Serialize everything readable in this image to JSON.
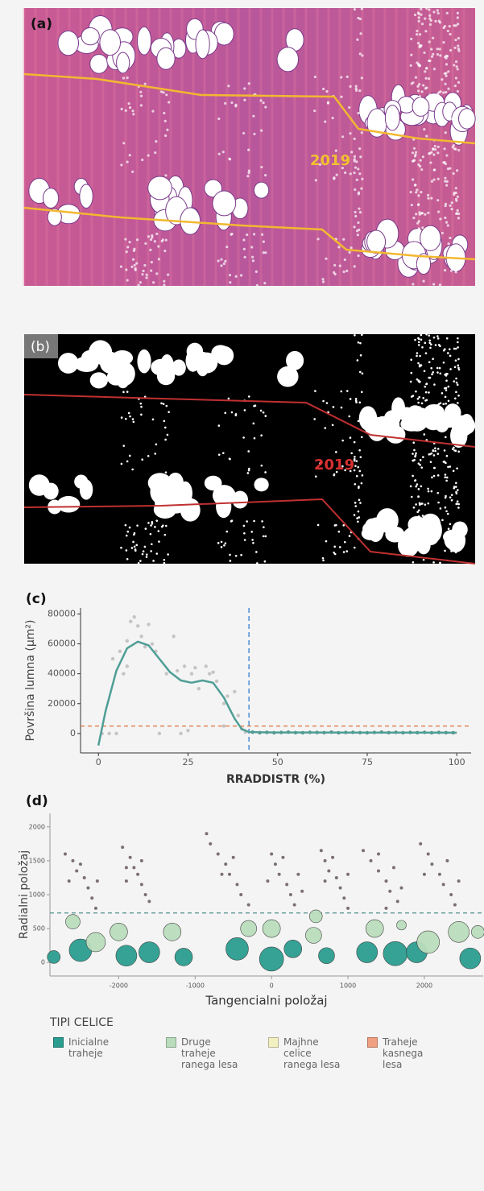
{
  "panels": [
    {
      "label": "(a)",
      "annotation": "2019"
    },
    {
      "label": "(b)",
      "annotation": "2019"
    }
  ],
  "chart_data": [
    {
      "type": "scatter",
      "panel_label": "(c)",
      "x_label": "RRADDISTR (%)",
      "y_label": "Površina lumna (µm²)",
      "xlim": [
        -5,
        104
      ],
      "ylim": [
        -13000,
        84000
      ],
      "xticks": [
        0,
        25,
        50,
        75,
        100
      ],
      "yticks": [
        0,
        20000,
        40000,
        60000,
        80000
      ],
      "vline": 42,
      "vline_color": "#4a8fd8",
      "hline": 5000,
      "hline_color": "#e0703a",
      "series": [
        {
          "mode": "points",
          "color": "#c4c4c4",
          "x": [
            1,
            3,
            5,
            4,
            6,
            7,
            8,
            8,
            9,
            10,
            11,
            12,
            13,
            14,
            15,
            16,
            17,
            19,
            21,
            22,
            23,
            24,
            25,
            26,
            27,
            28,
            30,
            31,
            32,
            33,
            35,
            35,
            36,
            38,
            39,
            40,
            41
          ],
          "values": [
            0,
            0,
            0,
            50000,
            55000,
            40000,
            62000,
            45000,
            75000,
            78000,
            72000,
            65000,
            58000,
            73000,
            60000,
            55000,
            0,
            40000,
            65000,
            42000,
            0,
            45000,
            2000,
            40000,
            44000,
            30000,
            45000,
            40000,
            41000,
            35000,
            20000,
            5000,
            25000,
            28000,
            12000,
            3000,
            1000
          ]
        },
        {
          "mode": "points",
          "color": "#4f8f8a",
          "x": [
            43,
            45,
            47,
            49,
            51,
            53,
            55,
            57,
            59,
            61,
            63,
            65,
            67,
            69,
            71,
            73,
            75,
            77,
            79,
            81,
            83,
            85,
            87,
            89,
            91,
            93,
            95,
            97,
            99
          ],
          "values": [
            900,
            600,
            800,
            500,
            700,
            900,
            600,
            500,
            800,
            700,
            600,
            900,
            500,
            700,
            800,
            600,
            500,
            700,
            900,
            600,
            800,
            500,
            700,
            600,
            800,
            500,
            700,
            600,
            500
          ]
        },
        {
          "mode": "line",
          "color": "#4f9e96",
          "x": [
            0,
            2,
            5,
            8,
            11,
            14,
            17,
            20,
            23,
            26,
            29,
            32,
            35,
            38,
            40,
            42,
            45,
            50,
            60,
            70,
            80,
            90,
            100
          ],
          "values": [
            -8000,
            15000,
            42000,
            57000,
            61500,
            59000,
            50000,
            41000,
            35500,
            34000,
            35500,
            34000,
            24000,
            10000,
            3000,
            1000,
            800,
            700,
            700,
            600,
            600,
            600,
            500
          ]
        }
      ]
    },
    {
      "type": "scatter",
      "panel_label": "(d)",
      "x_label": "Tangencialni položaj",
      "y_label": "Radialni položaj",
      "xlim": [
        -2900,
        2770
      ],
      "ylim": [
        -200,
        2200
      ],
      "xticks": [
        -2000,
        -1000,
        0,
        1000,
        2000
      ],
      "yticks": [
        0,
        500,
        1000,
        1500,
        2000
      ],
      "hline": 730,
      "hline_color": "#4f8f8a",
      "legend_title": "TIPI CELICE",
      "series": [
        {
          "name": "Inicialne traheje",
          "color": "#2a9d8f",
          "mode": "bubbles",
          "x": [
            -2500,
            -1900,
            -1600,
            -1150,
            -450,
            0,
            280,
            720,
            1250,
            1620,
            1900,
            2600,
            -2850
          ],
          "values": [
            180,
            100,
            150,
            80,
            200,
            50,
            200,
            100,
            150,
            130,
            150,
            60,
            80
          ],
          "sizes": [
            14,
            13,
            13,
            11,
            14,
            15,
            11,
            10,
            13,
            15,
            13,
            13,
            8
          ]
        },
        {
          "name": "Druge traheje ranega lesa",
          "color": "#b9dcbc",
          "mode": "bubbles",
          "x": [
            -2600,
            -2300,
            -2000,
            -1300,
            -300,
            0,
            550,
            580,
            1350,
            1700,
            2050,
            2450,
            2700
          ],
          "values": [
            600,
            300,
            450,
            450,
            500,
            500,
            400,
            680,
            500,
            550,
            300,
            450,
            450
          ],
          "sizes": [
            9,
            12,
            11,
            11,
            10,
            11,
            10,
            8,
            11,
            6,
            14,
            13,
            8
          ]
        },
        {
          "name": "Majhne celice ranega lesa",
          "color": "#f3f0c2",
          "mode": "bubbles",
          "x": [],
          "values": [],
          "sizes": []
        },
        {
          "name": "Traheje kasnega lesa",
          "color": "#f0a080",
          "mode": "bubbles",
          "x": [],
          "values": [],
          "sizes": []
        },
        {
          "color": "#7b6f6f",
          "mode": "points",
          "x": [
            -2700,
            -2600,
            -2550,
            -2450,
            -2400,
            -2350,
            -2300,
            -2500,
            -2280,
            -2650,
            -1950,
            -1850,
            -1800,
            -1750,
            -1700,
            -1650,
            -1600,
            -1900,
            -1700,
            -1900,
            -850,
            -800,
            -700,
            -600,
            -550,
            -450,
            -400,
            -300,
            -650,
            -500,
            0,
            50,
            100,
            200,
            250,
            300,
            -50,
            150,
            350,
            400,
            650,
            700,
            750,
            850,
            900,
            950,
            1000,
            800,
            700,
            1000,
            1200,
            1300,
            1400,
            1500,
            1550,
            1650,
            1400,
            1600,
            1700,
            1500,
            1950,
            2050,
            2100,
            2200,
            2250,
            2350,
            2400,
            2000,
            2300,
            2450
          ],
          "values": [
            1600,
            1500,
            1350,
            1250,
            1100,
            950,
            800,
            1450,
            1200,
            1200,
            1700,
            1550,
            1400,
            1300,
            1150,
            1000,
            900,
            1400,
            1500,
            1200,
            1900,
            1750,
            1600,
            1450,
            1300,
            1150,
            1000,
            850,
            1300,
            1550,
            1600,
            1450,
            1300,
            1150,
            1000,
            850,
            1200,
            1550,
            1300,
            1050,
            1650,
            1500,
            1350,
            1250,
            1100,
            950,
            800,
            1550,
            1200,
            1300,
            1650,
            1500,
            1350,
            1200,
            1050,
            900,
            1600,
            1400,
            1100,
            800,
            1750,
            1600,
            1450,
            1300,
            1150,
            1000,
            850,
            1300,
            1500,
            1200
          ]
        }
      ]
    }
  ]
}
